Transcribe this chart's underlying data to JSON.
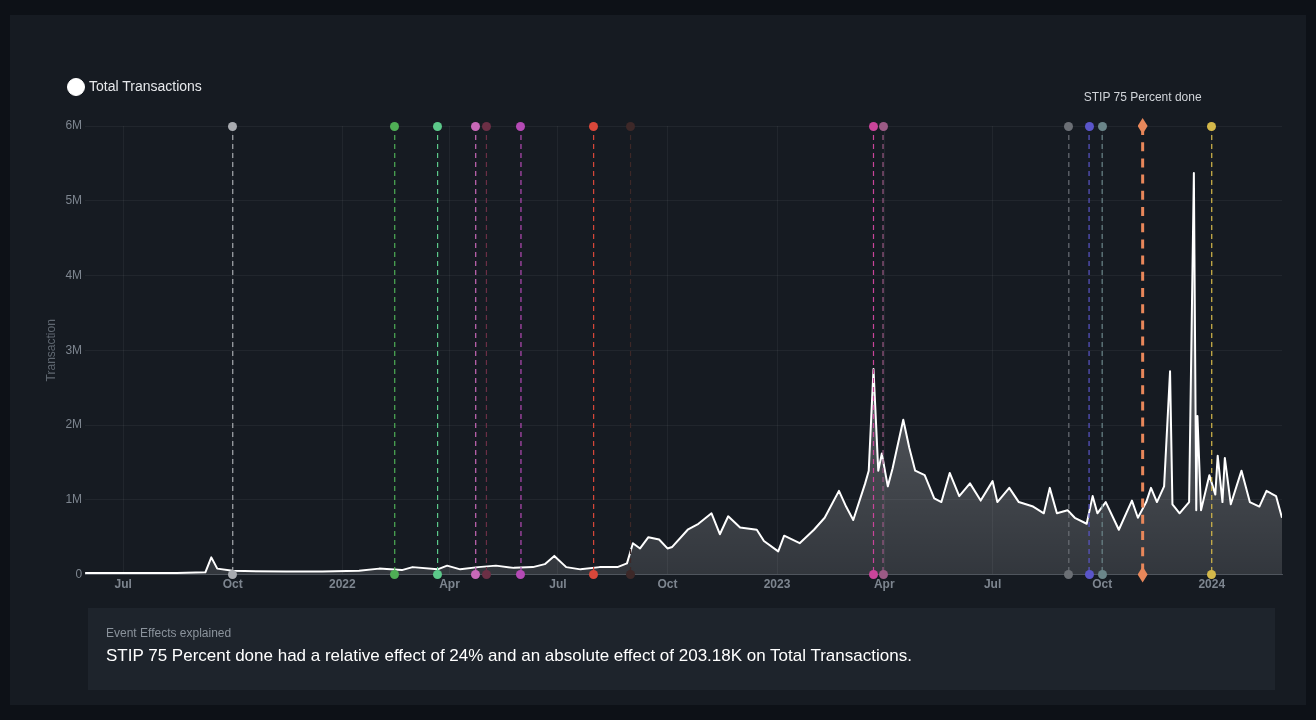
{
  "chart_data": {
    "type": "area",
    "ylabel": "Transaction",
    "legend": "top left",
    "grid": true,
    "xlim": [
      "2021-05-30",
      "2024-02-29"
    ],
    "xticks": [
      {
        "value": "2021-07-01",
        "label": "Jul"
      },
      {
        "value": "2021-10-01",
        "label": "Oct"
      },
      {
        "value": "2022-01-01",
        "label": "2022"
      },
      {
        "value": "2022-04-01",
        "label": "Apr"
      },
      {
        "value": "2022-07-01",
        "label": "Jul"
      },
      {
        "value": "2022-10-01",
        "label": "Oct"
      },
      {
        "value": "2023-01-01",
        "label": "2023"
      },
      {
        "value": "2023-04-01",
        "label": "Apr"
      },
      {
        "value": "2023-07-01",
        "label": "Jul"
      },
      {
        "value": "2023-10-01",
        "label": "Oct"
      },
      {
        "value": "2024-01-01",
        "label": "2024"
      }
    ],
    "ylim": [
      0,
      6000000
    ],
    "yticks": [
      0,
      {
        "value": 1000000,
        "label": "1M"
      },
      {
        "value": 2000000,
        "label": "2M"
      },
      {
        "value": 3000000,
        "label": "3M"
      },
      {
        "value": 4000000,
        "label": "4M"
      },
      {
        "value": 5000000,
        "label": "5M"
      },
      {
        "value": 6000000,
        "label": "6M"
      }
    ],
    "x": [
      "2021-05-30",
      "2021-07-01",
      "2021-08-15",
      "2021-09-08",
      "2021-09-13",
      "2021-09-18",
      "2021-10-01",
      "2021-11-15",
      "2021-12-15",
      "2022-01-15",
      "2022-02-01",
      "2022-02-20",
      "2022-03-01",
      "2022-03-22",
      "2022-03-30",
      "2022-04-10",
      "2022-04-25",
      "2022-05-10",
      "2022-05-25",
      "2022-06-10",
      "2022-06-20",
      "2022-06-28",
      "2022-07-08",
      "2022-07-20",
      "2022-08-05",
      "2022-08-20",
      "2022-08-28",
      "2022-09-02",
      "2022-09-08",
      "2022-09-15",
      "2022-09-24",
      "2022-10-01",
      "2022-10-05",
      "2022-10-18",
      "2022-10-27",
      "2022-11-07",
      "2022-11-14",
      "2022-11-21",
      "2022-12-01",
      "2022-12-15",
      "2022-12-21",
      "2023-01-02",
      "2023-01-07",
      "2023-01-20",
      "2023-02-01",
      "2023-02-10",
      "2023-02-22",
      "2023-02-28",
      "2023-03-06",
      "2023-03-16",
      "2023-03-19",
      "2023-03-23",
      "2023-03-27",
      "2023-03-30",
      "2023-04-04",
      "2023-04-08",
      "2023-04-17",
      "2023-04-22",
      "2023-04-27",
      "2023-05-05",
      "2023-05-13",
      "2023-05-19",
      "2023-05-26",
      "2023-06-03",
      "2023-06-12",
      "2023-06-21",
      "2023-07-01",
      "2023-07-05",
      "2023-07-15",
      "2023-07-23",
      "2023-08-04",
      "2023-08-13",
      "2023-08-18",
      "2023-08-24",
      "2023-09-02",
      "2023-09-08",
      "2023-09-18",
      "2023-09-23",
      "2023-09-27",
      "2023-10-04",
      "2023-10-15",
      "2023-10-26",
      "2023-10-31",
      "2023-11-07",
      "2023-11-11",
      "2023-11-16",
      "2023-11-22",
      "2023-11-27",
      "2023-11-29",
      "2023-12-05",
      "2023-12-13",
      "2023-12-17",
      "2023-12-19",
      "2023-12-20",
      "2023-12-23",
      "2023-12-30",
      "2024-01-04",
      "2024-01-06",
      "2024-01-10",
      "2024-01-12",
      "2024-01-17",
      "2024-01-26",
      "2024-02-02",
      "2024-02-10",
      "2024-02-16",
      "2024-02-24",
      "2024-02-29"
    ],
    "series": [
      {
        "name": "Total Transactions",
        "color": "#ffffff",
        "values": [
          20000,
          20000,
          20000,
          30000,
          230000,
          80000,
          50000,
          40000,
          40000,
          50000,
          80000,
          60000,
          100000,
          70000,
          120000,
          70000,
          100000,
          120000,
          90000,
          100000,
          140000,
          250000,
          100000,
          70000,
          100000,
          100000,
          150000,
          420000,
          350000,
          500000,
          470000,
          350000,
          370000,
          600000,
          680000,
          820000,
          540000,
          780000,
          630000,
          600000,
          450000,
          310000,
          520000,
          420000,
          600000,
          760000,
          1120000,
          910000,
          730000,
          1220000,
          1390000,
          2750000,
          1390000,
          1620000,
          1180000,
          1420000,
          2070000,
          1700000,
          1390000,
          1330000,
          1020000,
          970000,
          1360000,
          1050000,
          1220000,
          990000,
          1250000,
          970000,
          1160000,
          970000,
          910000,
          820000,
          1160000,
          820000,
          860000,
          760000,
          680000,
          1050000,
          820000,
          970000,
          600000,
          990000,
          760000,
          970000,
          1160000,
          970000,
          1180000,
          2720000,
          940000,
          820000,
          970000,
          5370000,
          860000,
          2120000,
          860000,
          1330000,
          1070000,
          1590000,
          970000,
          1560000,
          940000,
          1390000,
          970000,
          910000,
          1120000,
          1050000,
          760000
        ]
      }
    ],
    "ref_lines": [
      {
        "axis": "x",
        "value": "2021-10-01",
        "color": "#a8abb0",
        "line_style": "dashed"
      },
      {
        "axis": "x",
        "value": "2022-02-14",
        "color": "#4fae55",
        "line_style": "dashed"
      },
      {
        "axis": "x",
        "value": "2022-03-22",
        "color": "#5cc98a",
        "line_style": "dashed"
      },
      {
        "axis": "x",
        "value": "2022-04-23",
        "color": "#c869b8",
        "line_style": "dashed"
      },
      {
        "axis": "x",
        "value": "2022-05-02",
        "color": "#6b2f45",
        "line_style": "dashed"
      },
      {
        "axis": "x",
        "value": "2022-05-31",
        "color": "#b54ab5",
        "line_style": "dashed"
      },
      {
        "axis": "x",
        "value": "2022-07-31",
        "color": "#d9473a",
        "line_style": "dashed"
      },
      {
        "axis": "x",
        "value": "2022-08-31",
        "color": "#3d2828",
        "line_style": "dashed"
      },
      {
        "axis": "x",
        "value": "2023-03-23",
        "color": "#c9449a",
        "line_style": "dashed"
      },
      {
        "axis": "x",
        "value": "2023-03-31",
        "color": "#9b5a85",
        "line_style": "dashed"
      },
      {
        "axis": "x",
        "value": "2023-09-03",
        "color": "#6b6f75",
        "line_style": "dashed"
      },
      {
        "axis": "x",
        "value": "2023-09-20",
        "color": "#5a55c9",
        "line_style": "dashed"
      },
      {
        "axis": "x",
        "value": "2023-10-01",
        "color": "#6a8589",
        "line_style": "dashed"
      },
      {
        "axis": "x",
        "value": "2023-11-04",
        "color": "#e8875a",
        "line_style": "dashed",
        "label": "STIP 75 Percent done"
      },
      {
        "axis": "x",
        "value": "2024-01-01",
        "color": "#d4b84a",
        "line_style": "dashed"
      }
    ],
    "annotations": [
      "Event Effects explained",
      "STIP 75 Percent done had a relative effect of 24% and an absolute effect of 203.18K on Total Transactions."
    ]
  }
}
